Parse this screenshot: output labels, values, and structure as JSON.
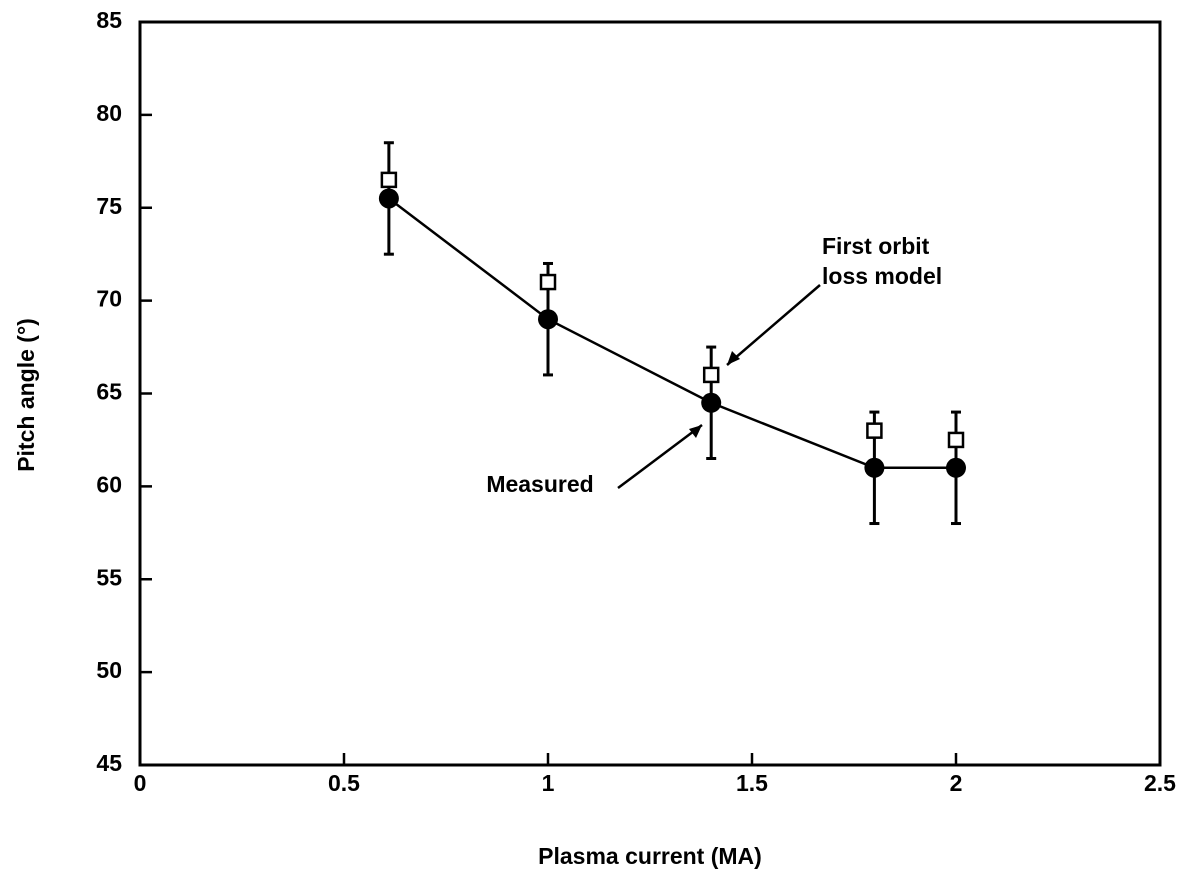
{
  "chart_data": {
    "type": "scatter",
    "xlabel": "Plasma current (MA)",
    "ylabel": "Pitch angle (°)",
    "xlim": [
      0,
      2.5
    ],
    "xticks": [
      0,
      0.5,
      1,
      1.5,
      2,
      2.5
    ],
    "ylim": [
      45,
      85
    ],
    "yticks": [
      45,
      50,
      55,
      60,
      65,
      70,
      75,
      80,
      85
    ],
    "series": [
      {
        "color": "#000000",
        "marker": "circle",
        "line": true,
        "x": [
          0.61,
          1.0,
          1.4,
          1.8,
          2.0
        ],
        "values": [
          75.5,
          69,
          64.5,
          61,
          61
        ],
        "errors": [
          3,
          3,
          3,
          3,
          3
        ]
      },
      {
        "color": "#000000",
        "marker": "square",
        "line": false,
        "x": [
          0.61,
          1.0,
          1.4,
          1.8,
          2.0
        ],
        "values": [
          76.5,
          71,
          66,
          63,
          62.5
        ]
      }
    ],
    "annotations": [
      {
        "text": [
          "First orbit",
          "loss model"
        ]
      },
      {
        "text": "Measured"
      }
    ]
  }
}
